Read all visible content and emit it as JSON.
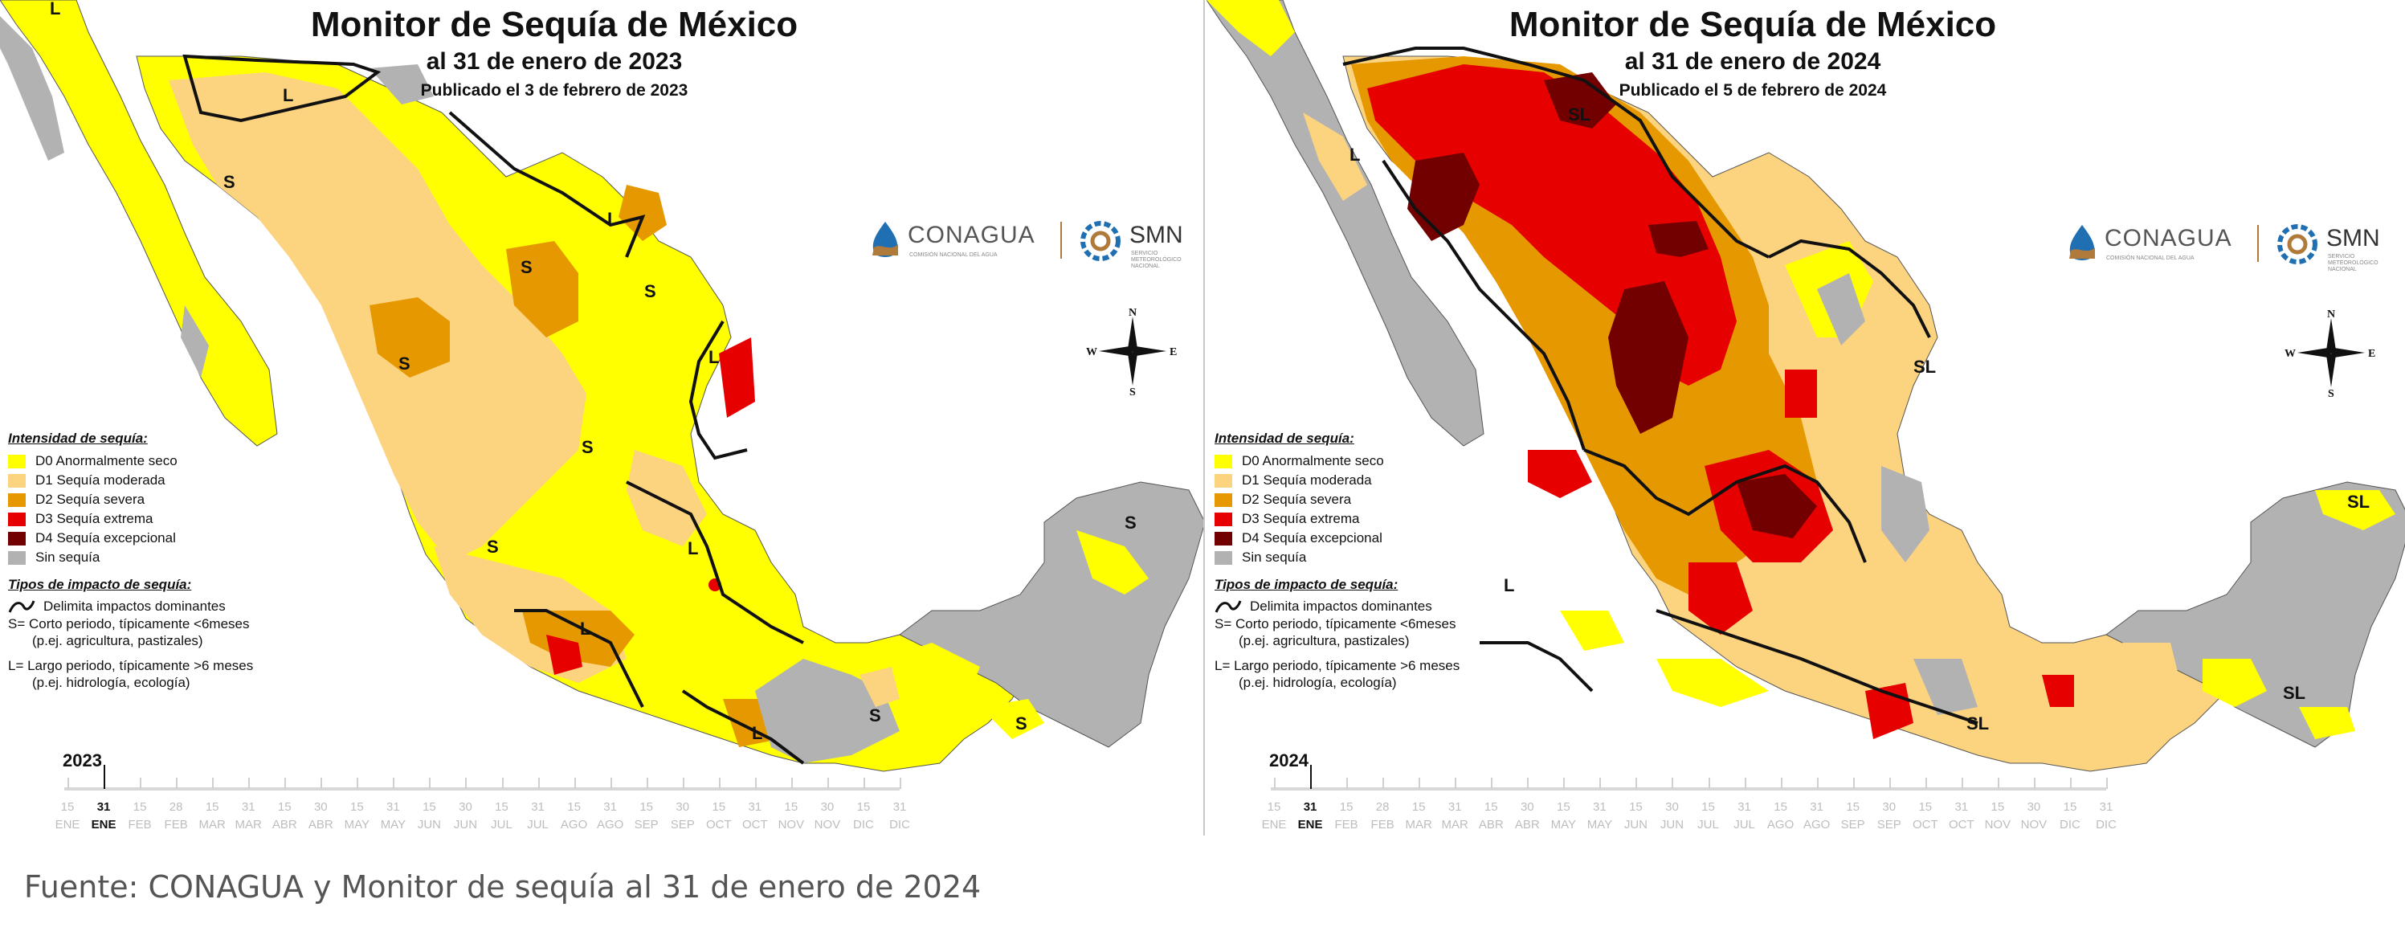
{
  "colors": {
    "D0": "#ffff00",
    "D1": "#fcd37f",
    "D2": "#e69800",
    "D3": "#e60000",
    "D4": "#730000",
    "none": "#b2b2b2",
    "background": "#ffffff"
  },
  "icons": {
    "conagua": "conagua-logo",
    "smn": "smn-logo",
    "compass": "compass-rose-icon",
    "impact_line": "boundary-line-icon"
  },
  "maps": [
    {
      "title": "Monitor de Sequía de México",
      "date": "al 31 de enero de 2023",
      "published": "Publicado el 3 de febrero de 2023",
      "region_labels": [
        "L",
        "L",
        "S",
        "L",
        "S",
        "S",
        "S",
        "L",
        "S",
        "S",
        "L",
        "L",
        "S",
        "S",
        "L",
        "S",
        "S"
      ],
      "timeline": {
        "year": "2023"
      }
    },
    {
      "title": "Monitor de Sequía de México",
      "date": "al 31 de enero de 2024",
      "published": "Publicado el 5 de febrero de 2024",
      "region_labels": [
        "L",
        "SL",
        "SL",
        "SL",
        "L",
        "SL",
        "SL"
      ],
      "timeline": {
        "year": "2024"
      }
    }
  ],
  "logos": {
    "conagua": "CONAGUA",
    "conagua_sub": "COMISIÓN NACIONAL DEL AGUA",
    "smn": "SMN",
    "smn_sub": "SERVICIO METEOROLÓGICO NACIONAL"
  },
  "compass": {
    "n": "N",
    "s": "S",
    "e": "E",
    "w": "W"
  },
  "legend": {
    "heading": "Intensidad de sequía:",
    "items": [
      {
        "code": "D0",
        "label": "D0 Anormalmente seco"
      },
      {
        "code": "D1",
        "label": "D1 Sequía moderada"
      },
      {
        "code": "D2",
        "label": "D2 Sequía severa"
      },
      {
        "code": "D3",
        "label": "D3 Sequía extrema"
      },
      {
        "code": "D4",
        "label": "D4 Sequía excepcional"
      },
      {
        "code": "none",
        "label": "Sin sequía"
      }
    ],
    "impact_heading": "Tipos de impacto de sequía:",
    "impact_line": "Delimita impactos dominantes",
    "impact_s": "S= Corto periodo, típicamente <6meses",
    "impact_s_ex": "(p.ej. agricultura, pastizales)",
    "impact_l": "L= Largo periodo, típicamente >6 meses",
    "impact_l_ex": "(p.ej. hidrología, ecología)"
  },
  "timeline": {
    "numbers": [
      "15",
      "31",
      "15",
      "28",
      "15",
      "31",
      "15",
      "30",
      "15",
      "31",
      "15",
      "30",
      "15",
      "31",
      "15",
      "31",
      "15",
      "30",
      "15",
      "31",
      "15",
      "30",
      "15",
      "31"
    ],
    "months": [
      "ENE",
      "ENE",
      "FEB",
      "FEB",
      "MAR",
      "MAR",
      "ABR",
      "ABR",
      "MAY",
      "MAY",
      "JUN",
      "JUN",
      "JUL",
      "JUL",
      "AGO",
      "AGO",
      "SEP",
      "SEP",
      "OCT",
      "OCT",
      "NOV",
      "NOV",
      "DIC",
      "DIC"
    ],
    "active_index": 1
  },
  "source": "Fuente: CONAGUA y Monitor de sequía al 31 de enero de 2024"
}
